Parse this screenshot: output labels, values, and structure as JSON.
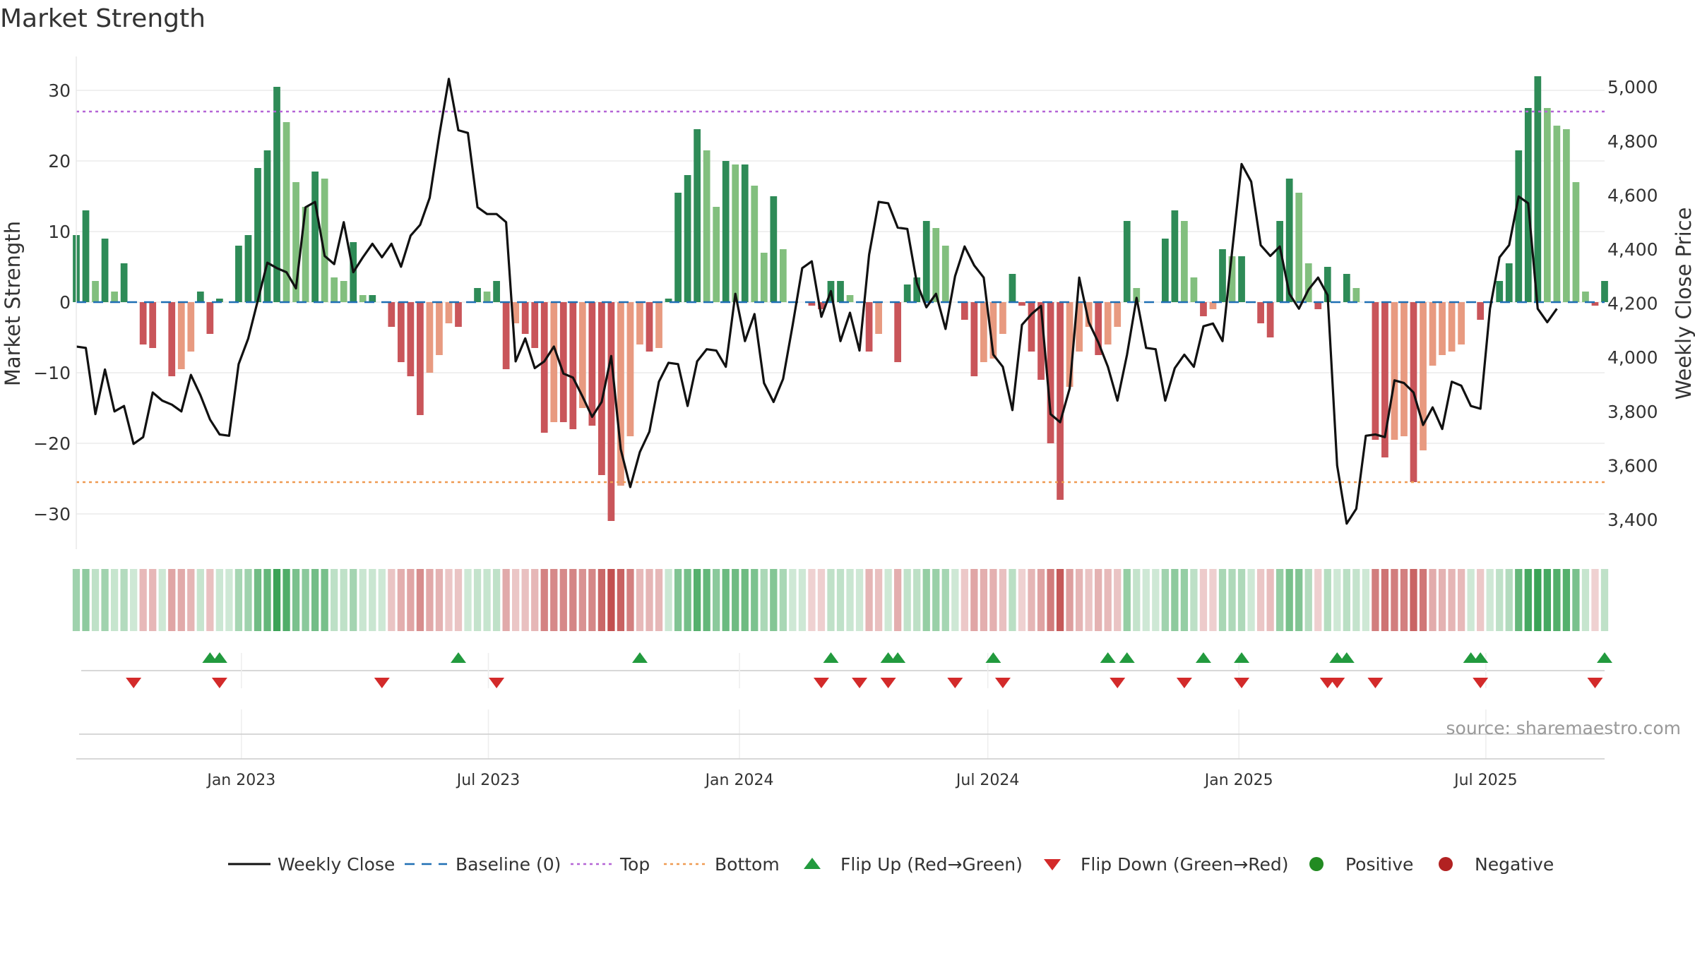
{
  "chart_data": {
    "type": "bar",
    "title": "Market Strength",
    "ylabel": "Market Strength",
    "y2label": "Weekly Close Price",
    "ylim": [
      -35,
      35
    ],
    "y2lim": [
      3300,
      5100
    ],
    "y_ticks": [
      30,
      20,
      10,
      0,
      -10,
      -20,
      -30
    ],
    "y_tick_labels": [
      "30",
      "20",
      "10",
      "0",
      "−10",
      "−20",
      "−30"
    ],
    "y2_ticks": [
      5000,
      4800,
      4600,
      4400,
      4200,
      4000,
      3800,
      3600,
      3400
    ],
    "y2_tick_labels": [
      "5,000",
      "4,800",
      "4,600",
      "4,400",
      "4,200",
      "4,000",
      "3,800",
      "3,600",
      "3,400"
    ],
    "top_line": 27,
    "bottom_line": -25.5,
    "x_start": "2022-09-02",
    "x_end": "2025-09-26",
    "date_ticks": [
      {
        "date": "2023-01-01",
        "label": "Jan 2023"
      },
      {
        "date": "2023-07-01",
        "label": "Jul 2023"
      },
      {
        "date": "2024-01-01",
        "label": "Jan 2024"
      },
      {
        "date": "2024-07-01",
        "label": "Jul 2024"
      },
      {
        "date": "2025-01-01",
        "label": "Jan 2025"
      },
      {
        "date": "2025-07-01",
        "label": "Jul 2025"
      }
    ],
    "strength": [
      9.5,
      13,
      3,
      9,
      1.5,
      5.5,
      0,
      -6,
      -6.5,
      0,
      -10.5,
      -9.5,
      -7,
      1.5,
      -4.5,
      0.5,
      0,
      8,
      9.5,
      19,
      21.5,
      30.5,
      25.5,
      17,
      13.5,
      18.5,
      17.5,
      3.5,
      3,
      8.5,
      1,
      1,
      0,
      -3.5,
      -8.5,
      -10.5,
      -16,
      -10,
      -7.5,
      -3,
      -3.5,
      0,
      2,
      1.5,
      3,
      -9.5,
      -3,
      -4.5,
      -6.5,
      -18.5,
      -17,
      -17,
      -18,
      -15,
      -17.5,
      -24.5,
      -31,
      -26,
      -19,
      -6,
      -7,
      -6.5,
      0.5,
      15.5,
      18,
      24.5,
      21.5,
      13.5,
      20,
      19.5,
      19.5,
      16.5,
      7,
      15,
      7.5,
      0,
      0,
      -0.5,
      -1,
      3,
      3,
      1,
      0,
      -7,
      -4.5,
      0,
      -8.5,
      2.5,
      3.5,
      11.5,
      10.5,
      8,
      0,
      -2.5,
      -10.5,
      -8.5,
      -8,
      -4.5,
      4,
      -0.5,
      -7,
      -11,
      -20,
      -28,
      -12,
      -7,
      -3.5,
      -7.5,
      -6,
      -3.5,
      11.5,
      2,
      0,
      0,
      9,
      13,
      11.5,
      3.5,
      -2,
      -1,
      7.5,
      6.5,
      6.5,
      0,
      -3,
      -5,
      11.5,
      17.5,
      15.5,
      5.5,
      -1,
      5,
      0,
      4,
      2,
      0,
      -19.5,
      -22,
      -19.5,
      -19,
      -25.5,
      -21,
      -9,
      -7.5,
      -7,
      -6,
      0,
      -2.5,
      0,
      3,
      5.5,
      21.5,
      27.5,
      32,
      27.5,
      25,
      24.5,
      17,
      1.5,
      -0.5,
      3
    ],
    "close": [
      4040,
      4035,
      3790,
      3955,
      3800,
      3820,
      3680,
      3705,
      3870,
      3840,
      3825,
      3800,
      3935,
      3860,
      3770,
      3715,
      3710,
      3975,
      4070,
      4210,
      4350,
      4330,
      4315,
      4255,
      4555,
      4575,
      4375,
      4345,
      4500,
      4315,
      4370,
      4420,
      4370,
      4420,
      4335,
      4450,
      4490,
      4590,
      4820,
      5030,
      4840,
      4830,
      4555,
      4530,
      4530,
      4500,
      3985,
      4070,
      3960,
      3985,
      4040,
      3940,
      3925,
      3855,
      3780,
      3835,
      4005,
      3660,
      3520,
      3650,
      3725,
      3910,
      3980,
      3975,
      3820,
      3985,
      4030,
      4025,
      3965,
      4235,
      4060,
      4160,
      3905,
      3835,
      3920,
      4120,
      4330,
      4355,
      4150,
      4245,
      4060,
      4165,
      4025,
      4380,
      4575,
      4570,
      4480,
      4475,
      4275,
      4185,
      4235,
      4105,
      4300,
      4410,
      4340,
      4295,
      4010,
      3965,
      3805,
      4120,
      4160,
      4190,
      3790,
      3760,
      3885,
      4295,
      4130,
      4055,
      3965,
      3840,
      4010,
      4220,
      4035,
      4030,
      3840,
      3960,
      4010,
      3965,
      4115,
      4125,
      4060,
      4390,
      4715,
      4650,
      4415,
      4375,
      4410,
      4235,
      4180,
      4250,
      4295,
      4230,
      3600,
      3385,
      3440,
      3710,
      3715,
      3705,
      3915,
      3905,
      3870,
      3750,
      3815,
      3735,
      3910,
      3895,
      3820,
      3810,
      4180,
      4370,
      4415,
      4595,
      4570,
      4180,
      4130,
      4180
    ],
    "flip_up": [
      "2022-12-09",
      "2022-12-16",
      "2023-06-09",
      "2023-10-20",
      "2024-03-08",
      "2024-04-19",
      "2024-04-26",
      "2024-07-05",
      "2024-09-27",
      "2024-10-11",
      "2024-12-06",
      "2025-01-03",
      "2025-03-14",
      "2025-03-21",
      "2025-06-20",
      "2025-06-27",
      "2025-09-26"
    ],
    "flip_down": [
      "2022-10-14",
      "2022-12-16",
      "2023-04-14",
      "2023-07-07",
      "2024-03-01",
      "2024-03-29",
      "2024-04-19",
      "2024-06-07",
      "2024-07-12",
      "2024-10-04",
      "2024-11-22",
      "2025-01-03",
      "2025-03-07",
      "2025-03-14",
      "2025-04-11",
      "2025-06-27",
      "2025-09-19"
    ],
    "colors": {
      "strong_green": "#2e8b57",
      "light_green": "#82bf7e",
      "strong_red": "#c9555a",
      "light_red": "#e89a80",
      "close_line": "#111111",
      "baseline": "#1f6fb4",
      "top_line": "#b565d6",
      "bottom_line": "#ef9b52",
      "flip_up": "#229a3e",
      "flip_down": "#d32a2a",
      "positive": "#228b22",
      "negative": "#b22222"
    },
    "legend": [
      {
        "label": "Weekly Close",
        "marker": "line"
      },
      {
        "label": "Baseline (0)",
        "marker": "dash"
      },
      {
        "label": "Top",
        "marker": "dot"
      },
      {
        "label": "Bottom",
        "marker": "dot"
      },
      {
        "label": "Flip Up (Red→Green)",
        "marker": "triangle-up"
      },
      {
        "label": "Flip Down (Green→Red)",
        "marker": "triangle-down"
      },
      {
        "label": "Positive",
        "marker": "circle"
      },
      {
        "label": "Negative",
        "marker": "circle"
      }
    ],
    "source": "source: sharemaestro.com",
    "grid": true
  }
}
